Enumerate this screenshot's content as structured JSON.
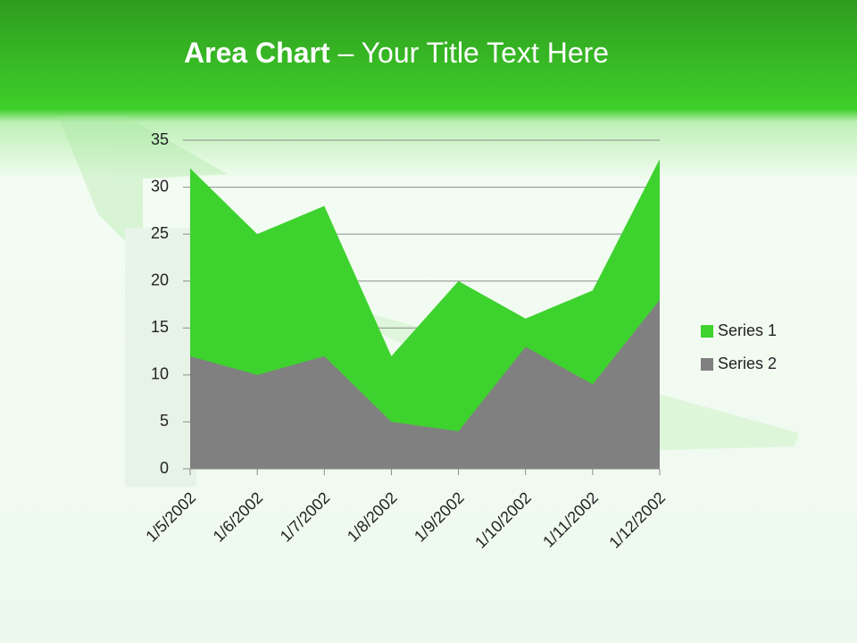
{
  "chart_data": {
    "type": "area",
    "title": {
      "bold": "Area Chart",
      "rest": "– Your Title Text Here"
    },
    "categories": [
      "1/5/2002",
      "1/6/2002",
      "1/7/2002",
      "1/8/2002",
      "1/9/2002",
      "1/10/2002",
      "1/11/2002",
      "1/12/2002"
    ],
    "series": [
      {
        "name": "Series 1",
        "color": "#3ed22f",
        "values": [
          32,
          25,
          28,
          12,
          20,
          16,
          19,
          33
        ]
      },
      {
        "name": "Series 2",
        "color": "#808080",
        "values": [
          12,
          10,
          12,
          5,
          4,
          13,
          9,
          18
        ]
      }
    ],
    "ylim": [
      0,
      35
    ],
    "yticks": [
      0,
      5,
      10,
      15,
      20,
      25,
      30,
      35
    ],
    "grid": true,
    "legend": "right"
  }
}
